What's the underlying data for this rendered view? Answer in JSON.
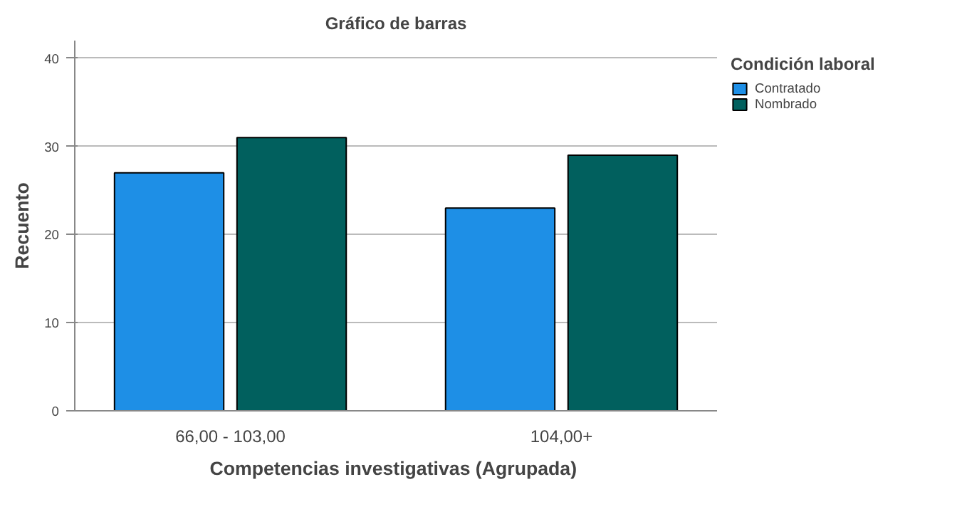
{
  "chart_data": {
    "type": "bar",
    "title": "Gráfico de barras",
    "xlabel": "Competencias investigativas  (Agrupada)",
    "ylabel": "Recuento",
    "legend_title": "Condición laboral",
    "categories": [
      "66,00 - 103,00",
      "104,00+"
    ],
    "series": [
      {
        "name": "Contratado",
        "color": "#1e8fe6",
        "values": [
          27,
          23
        ]
      },
      {
        "name": "Nombrado",
        "color": "#01605e",
        "values": [
          31,
          29
        ]
      }
    ],
    "ylim": [
      0,
      42
    ],
    "yticks": [
      0,
      10,
      20,
      30,
      40
    ],
    "grid": "y",
    "legend": "top right"
  }
}
